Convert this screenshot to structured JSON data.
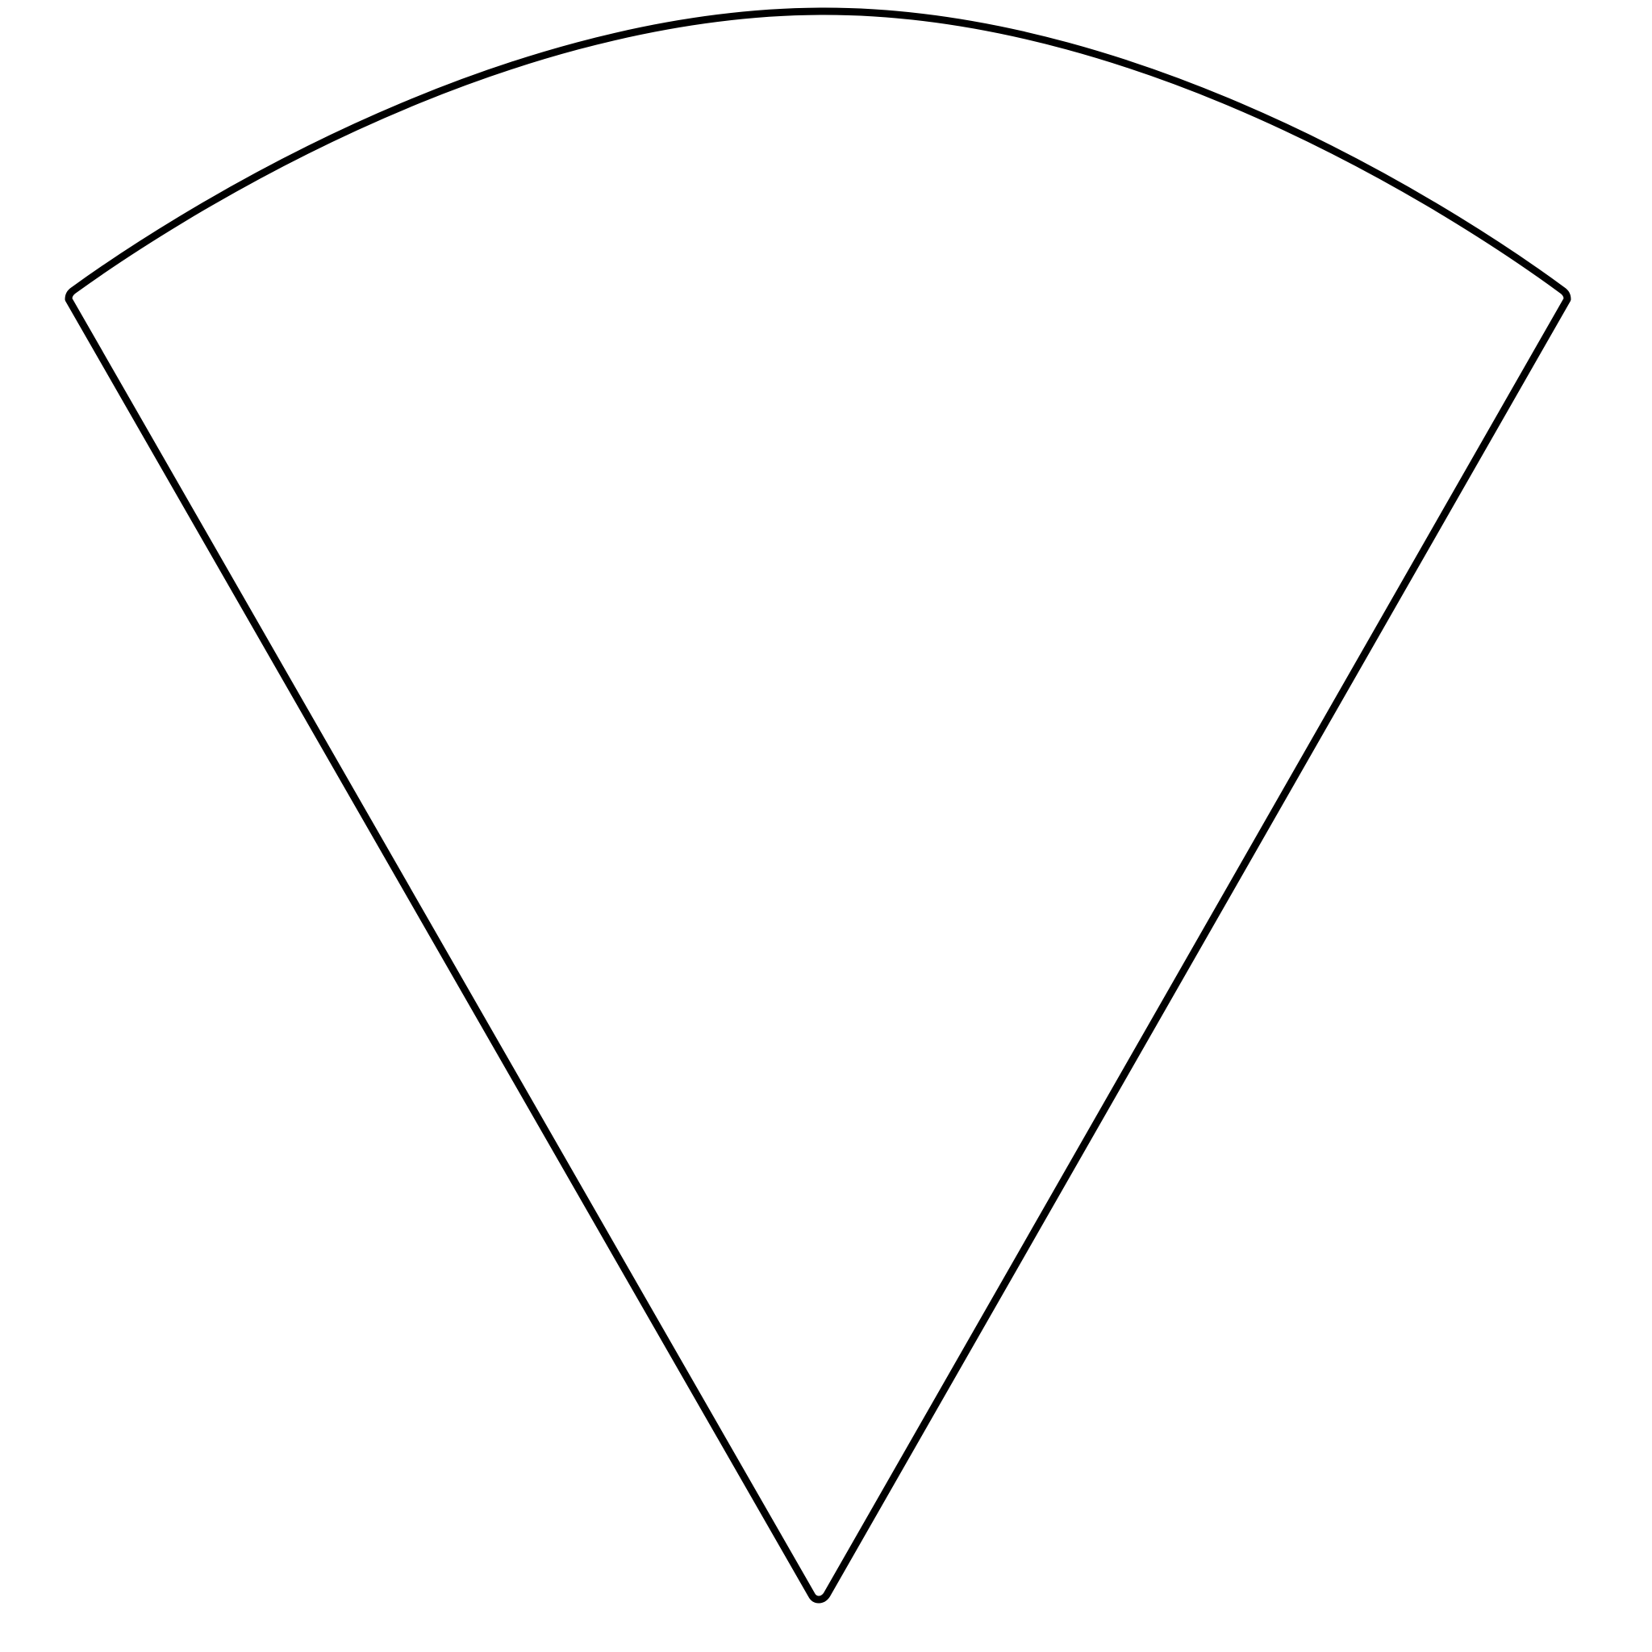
{
  "diagram": {
    "shape": "circular-sector",
    "fill_color": "#ffffff",
    "stroke_color": "#000000",
    "background_color": "#ffffff"
  }
}
